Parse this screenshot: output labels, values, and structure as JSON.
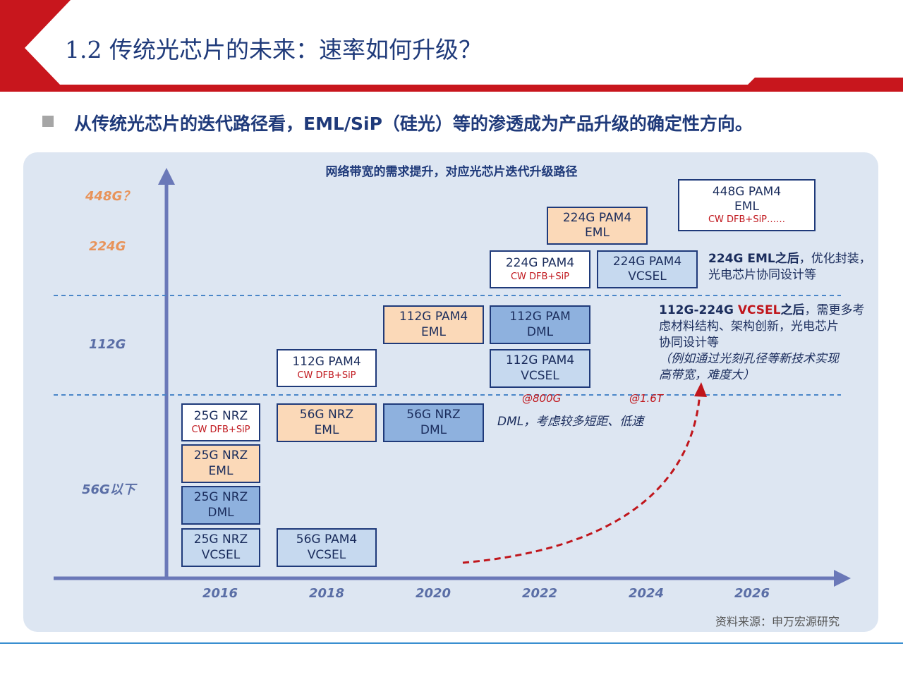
{
  "header": {
    "title": "1.2 传统光芯片的未来：速率如何升级？",
    "subtitle": "从传统光芯片的迭代路径看，EML/SiP（硅光）等的渗透成为产品升级的确定性方向。"
  },
  "diagram": {
    "title": "网络带宽的需求提升，对应光芯片迭代升级路径",
    "y_labels": [
      "448G？",
      "224G",
      "112G",
      "56G以下"
    ],
    "x_labels": [
      "2016",
      "2018",
      "2020",
      "2022",
      "2024",
      "2026"
    ],
    "boxes": [
      {
        "l1": "25G NRZ",
        "l2": "",
        "l3": "CW DFB+SiP"
      },
      {
        "l1": "25G NRZ",
        "l2": "EML",
        "l3": ""
      },
      {
        "l1": "25G NRZ",
        "l2": "DML",
        "l3": ""
      },
      {
        "l1": "25G NRZ",
        "l2": "VCSEL",
        "l3": ""
      },
      {
        "l1": "56G NRZ",
        "l2": "EML",
        "l3": ""
      },
      {
        "l1": "56G PAM4",
        "l2": "VCSEL",
        "l3": ""
      },
      {
        "l1": "112G PAM4",
        "l2": "",
        "l3": "CW DFB+SiP"
      },
      {
        "l1": "56G NRZ",
        "l2": "DML",
        "l3": ""
      },
      {
        "l1": "112G PAM4",
        "l2": "EML",
        "l3": ""
      },
      {
        "l1": "112G PAM",
        "l2": "DML",
        "l3": ""
      },
      {
        "l1": "112G PAM4",
        "l2": "VCSEL",
        "l3": ""
      },
      {
        "l1": "224G PAM4",
        "l2": "",
        "l3": "CW DFB+SiP"
      },
      {
        "l1": "224G PAM4",
        "l2": "EML",
        "l3": ""
      },
      {
        "l1": "224G PAM4",
        "l2": "VCSEL",
        "l3": ""
      },
      {
        "l1": "448G PAM4",
        "l2": "EML",
        "l3": "CW DFB+SiP……"
      }
    ],
    "notes": {
      "n224_bold": "224G EML之后",
      "n224_rest": "，优化封装，",
      "n224_line2": "光电芯片协同设计等",
      "n112_pre": "112G-224G ",
      "n112_red": "VCSEL",
      "n112_bold": "之后",
      "n112_rest": "，需更多考",
      "n112_line2": "虑材料结构、架构创新，光电芯片",
      "n112_line3": "协同设计等",
      "n112_italic1": "（例如通过光刻孔径等新技术实现",
      "n112_italic2": "高带宽，难度大）",
      "dml_note": "DML，考虑较多短距、低速"
    },
    "markers": [
      "@800G",
      "@1.6T"
    ],
    "colors": {
      "axis": "#6a78b8",
      "arrow_red": "#c0161c",
      "orange_fill": "#fbd9b8",
      "blue_fill": "#8eb1de",
      "lightblue_fill": "#c6d9ef",
      "label_orange": "#e8935a",
      "label_blue": "#5a6ea6"
    }
  },
  "source": "资料来源：申万宏源研究"
}
